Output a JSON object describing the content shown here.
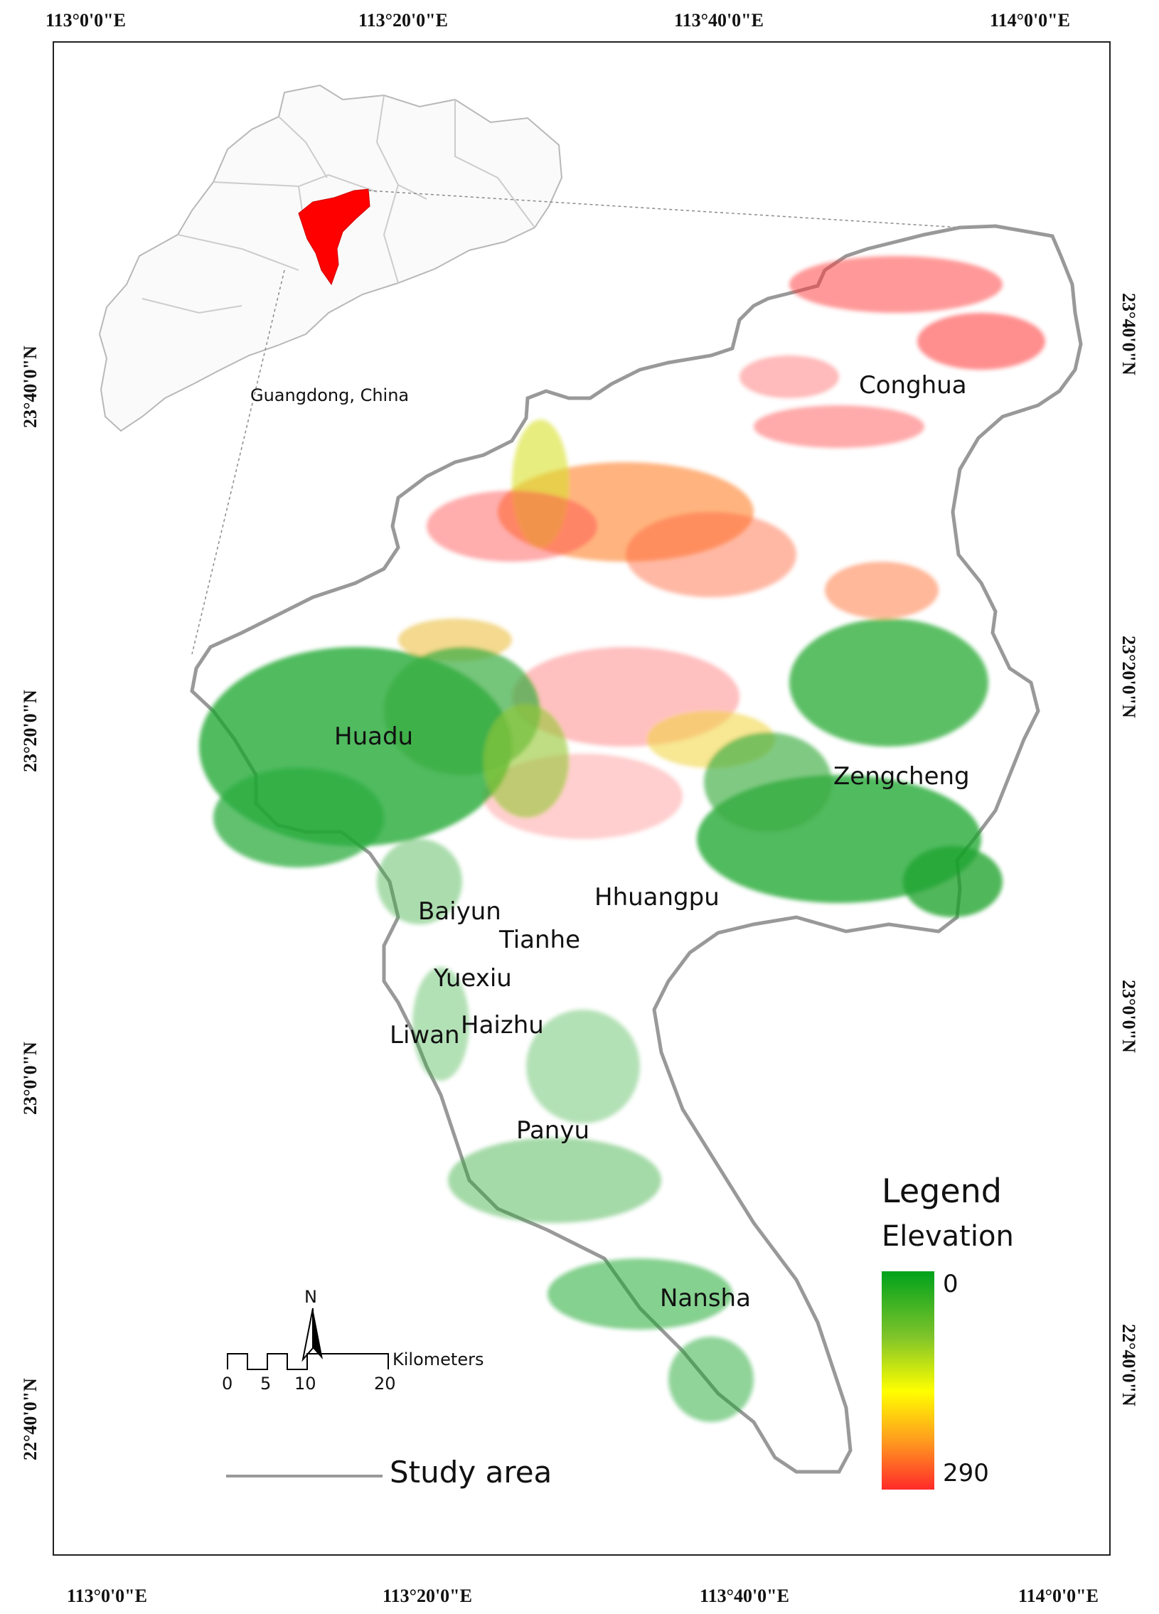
{
  "graticule": {
    "lon_ticks": [
      "113°0'0\"E",
      "113°20'0\"E",
      "113°40'0\"E",
      "114°0'0\"E"
    ],
    "lat_ticks": [
      "23°40'0\"N",
      "23°20'0\"N",
      "23°0'0\"N",
      "22°40'0\"N"
    ]
  },
  "inset": {
    "label": "Guangdong, China",
    "highlight_color": "#ff0000"
  },
  "districts": [
    "Conghua",
    "Huadu",
    "Zengcheng",
    "Baiyun",
    "Hhuangpu",
    "Tianhe",
    "Yuexiu",
    "Haizhu",
    "Liwan",
    "Panyu",
    "Nansha"
  ],
  "legend": {
    "title": "Legend",
    "subtitle": "Elevation",
    "min": "0",
    "max": "290",
    "colors": [
      "#00a21c",
      "#7fc42a",
      "#ffff00",
      "#ff9a1f",
      "#ff2a2a"
    ]
  },
  "north_arrow": {
    "label": "N"
  },
  "scale_bar": {
    "ticks": [
      "0",
      "5",
      "10",
      "20"
    ],
    "unit": "Kilometers"
  },
  "study_area": {
    "label": "Study area",
    "line_color": "#999999"
  }
}
